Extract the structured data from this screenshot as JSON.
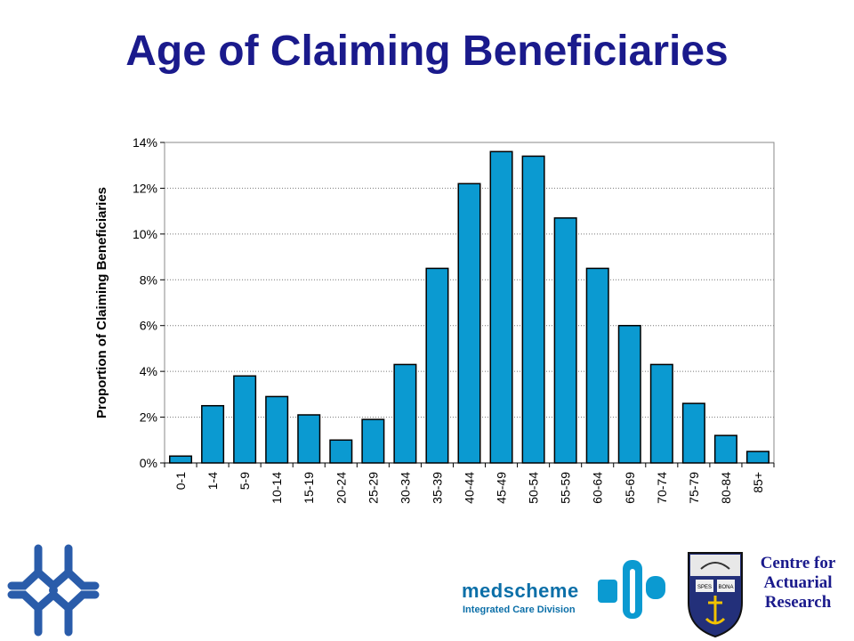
{
  "title": "Age of Claiming Beneficiaries",
  "chart_data": {
    "type": "bar",
    "title": "Age of Claiming Beneficiaries",
    "ylabel": "Proportion of Claiming Beneficiaries",
    "xlabel": "",
    "ylim": [
      0,
      14
    ],
    "ytick_step": 2,
    "ytick_suffix": "%",
    "grid": "horizontal-dotted",
    "bar_color": "#0b9ad1",
    "categories": [
      "0-1",
      "1-4",
      "5-9",
      "10-14",
      "15-19",
      "20-24",
      "25-29",
      "30-34",
      "35-39",
      "40-44",
      "45-49",
      "50-54",
      "55-59",
      "60-64",
      "65-69",
      "70-74",
      "75-79",
      "80-84",
      "85+"
    ],
    "values": [
      0.3,
      2.5,
      3.8,
      2.9,
      2.1,
      1.0,
      1.9,
      4.3,
      8.5,
      12.2,
      13.6,
      13.4,
      10.7,
      8.5,
      6.0,
      4.3,
      2.6,
      1.2,
      0.5
    ]
  },
  "logos": {
    "left_cross_icon": "cross-logo-icon",
    "medscheme_name": "medscheme",
    "medscheme_division": "Integrated Care Division",
    "car_line1": "Centre for",
    "car_line2": "Actuarial",
    "car_line3": "Research",
    "crest_motto_left": "SPES",
    "crest_motto_right": "BONA",
    "brand_blue": "#1a1a8c",
    "medscheme_blue": "#0b6fa8"
  }
}
